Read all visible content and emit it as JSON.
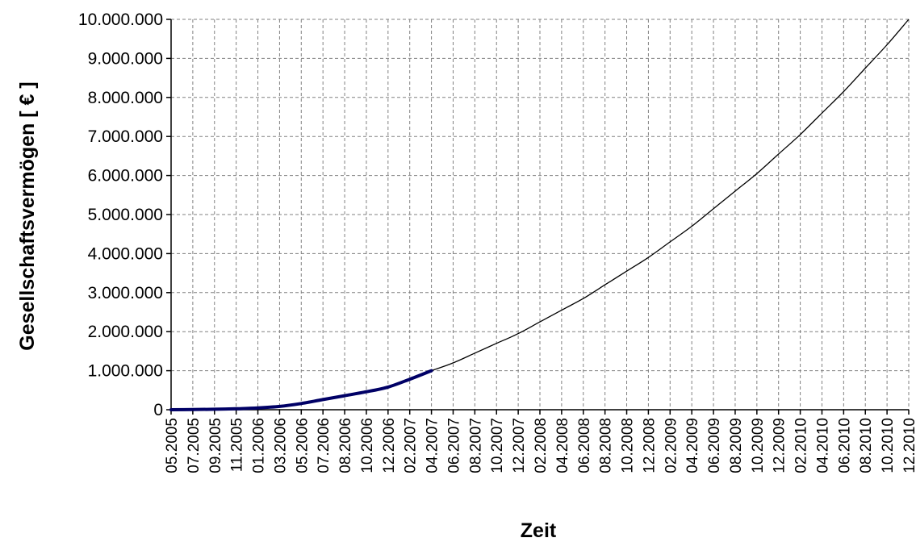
{
  "chart_data": {
    "type": "line",
    "xlabel": "Zeit",
    "ylabel": "Gesellschaftsvermögen [ € ]",
    "x_tick_labels": [
      "05.2005",
      "07.2005",
      "09.2005",
      "11.2005",
      "01.2006",
      "03.2006",
      "05.2006",
      "07.2006",
      "08.2006",
      "10.2006",
      "12.2006",
      "02.2007",
      "04.2007",
      "06.2007",
      "08.2007",
      "10.2007",
      "12.2007",
      "02.2008",
      "04.2008",
      "06.2008",
      "08.2008",
      "10.2008",
      "12.2008",
      "02.2009",
      "04.2009",
      "06.2009",
      "08.2009",
      "10.2009",
      "12.2009",
      "02.2010",
      "04.2010",
      "06.2010",
      "08.2010",
      "10.2010",
      "12.2010"
    ],
    "y_tick_labels": [
      "0",
      "1.000.000",
      "2.000.000",
      "3.000.000",
      "4.000.000",
      "5.000.000",
      "6.000.000",
      "7.000.000",
      "8.000.000",
      "9.000.000",
      "10.000.000"
    ],
    "ylim": [
      0,
      10000000
    ],
    "xlim": [
      "05.2005",
      "12.2010"
    ],
    "grid": true,
    "line_colors": {
      "actual": "#000066",
      "projection": "#000000"
    },
    "series": [
      {
        "values": [
          [
            "05.2005",
            0
          ],
          [
            "07.2005",
            5000
          ],
          [
            "09.2005",
            12000
          ],
          [
            "11.2005",
            25000
          ],
          [
            "01.2006",
            45000
          ],
          [
            "03.2006",
            85000
          ],
          [
            "05.2006",
            160000
          ],
          [
            "07.2006",
            260000
          ],
          [
            "08.2006",
            360000
          ],
          [
            "10.2006",
            460000
          ],
          [
            "12.2006",
            580000
          ],
          [
            "02.2007",
            780000
          ],
          [
            "04.2007",
            1000000
          ]
        ]
      },
      {
        "values": [
          [
            "04.2007",
            1000000
          ],
          [
            "06.2007",
            1200000
          ],
          [
            "08.2007",
            1450000
          ],
          [
            "10.2007",
            1700000
          ],
          [
            "12.2007",
            1950000
          ],
          [
            "02.2008",
            2250000
          ],
          [
            "04.2008",
            2550000
          ],
          [
            "06.2008",
            2850000
          ],
          [
            "08.2008",
            3200000
          ],
          [
            "10.2008",
            3550000
          ],
          [
            "12.2008",
            3900000
          ],
          [
            "02.2009",
            4300000
          ],
          [
            "04.2009",
            4700000
          ],
          [
            "06.2009",
            5150000
          ],
          [
            "08.2009",
            5600000
          ],
          [
            "10.2009",
            6050000
          ],
          [
            "12.2009",
            6550000
          ],
          [
            "02.2010",
            7050000
          ],
          [
            "04.2010",
            7600000
          ],
          [
            "06.2010",
            8150000
          ],
          [
            "08.2010",
            8750000
          ],
          [
            "10.2010",
            9350000
          ],
          [
            "12.2010",
            10000000
          ]
        ]
      }
    ]
  }
}
